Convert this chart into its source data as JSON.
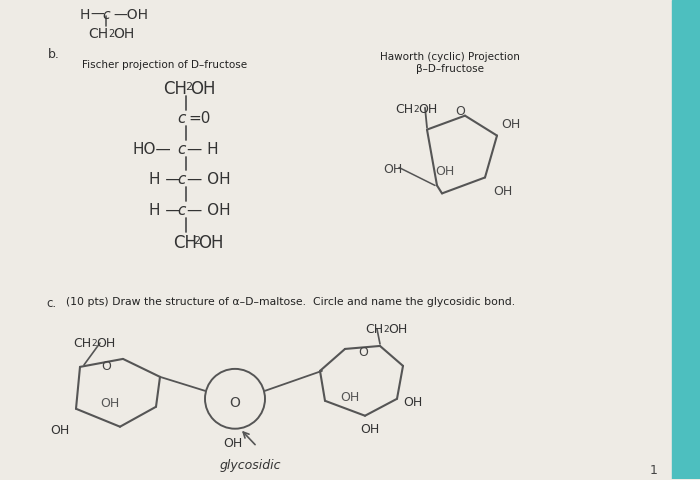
{
  "bg_color": "#eeebe5",
  "paper_color": "#f2efe9",
  "teal_color": "#4dbfbf",
  "line_color": "#555555",
  "dark_color": "#333333",
  "title_b": "b.",
  "title_c": "c.",
  "fischer_label": "Fischer projection of D–fructose",
  "haworth_label_1": "Haworth (cyclic) Projection",
  "haworth_label_2": "β–D–fructose",
  "question_c": "(10 pts) Draw the structure of α–D–maltose.  Circle and name the glycosidic bond.",
  "glycosidic_label": "glycosidic"
}
